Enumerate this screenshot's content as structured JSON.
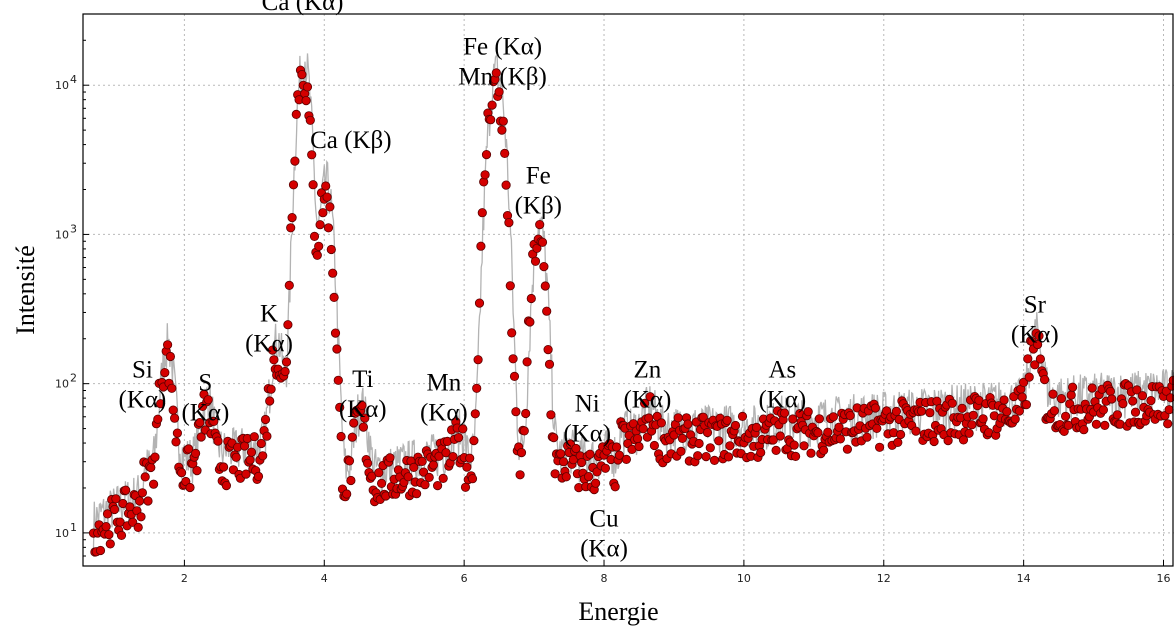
{
  "chart_data": {
    "type": "scatter",
    "xlabel": "Energie",
    "ylabel": "Intensité",
    "xlim": [
      0.55,
      16.15
    ],
    "ylim": [
      6,
      30000
    ],
    "yscale": "log",
    "grid": true,
    "x_ticks": [
      2,
      4,
      6,
      8,
      10,
      12,
      14,
      16
    ],
    "x_tick_labels": [
      "2",
      "4",
      "6",
      "8",
      "10",
      "12",
      "14",
      "16"
    ],
    "y_ticks": [
      10,
      100,
      1000,
      10000
    ],
    "y_tick_labels": [
      "10",
      "10",
      "10",
      "10"
    ],
    "y_tick_exponents": [
      "1",
      "2",
      "3",
      "4"
    ],
    "colors": {
      "marker": "#d40000",
      "marker_edge": "#5a0000",
      "reference_line": "#b3b3b3"
    },
    "peaks": [
      {
        "element": "Si",
        "line": "Kα",
        "x": 1.74,
        "y": 150
      },
      {
        "element": "S",
        "line": "Kα",
        "x": 2.31,
        "y": 65
      },
      {
        "element": "K",
        "line": "Kα",
        "x": 3.31,
        "y": 160
      },
      {
        "element": "Ca",
        "line": "Kα",
        "x": 3.69,
        "y": 12500
      },
      {
        "element": "Ca",
        "line": "Kβ",
        "x": 4.01,
        "y": 1850
      },
      {
        "element": "Ti",
        "line": "Kα",
        "x": 4.51,
        "y": 60
      },
      {
        "element": "Mn",
        "line": "Kα",
        "x": 5.9,
        "y": 40
      },
      {
        "element": "Fe",
        "line": "Kα",
        "x": 6.4,
        "y": 6000
      },
      {
        "element": "Mn",
        "line": "Kβ",
        "x": 6.49,
        "y": 6000
      },
      {
        "element": "Fe",
        "line": "Kβ",
        "x": 7.06,
        "y": 950
      },
      {
        "element": "Ni",
        "line": "Kα",
        "x": 7.48,
        "y": 30
      },
      {
        "element": "Cu",
        "line": "Kα",
        "x": 8.05,
        "y": 30
      },
      {
        "element": "Zn",
        "line": "Kα",
        "x": 8.64,
        "y": 60
      },
      {
        "element": "As",
        "line": "Kα",
        "x": 10.54,
        "y": 50
      },
      {
        "element": "Sr",
        "line": "Kα",
        "x": 14.16,
        "y": 180
      }
    ],
    "annotations": [
      {
        "lines": [
          "Ca (Kα)"
        ],
        "x": 3.69,
        "y": 32000
      },
      {
        "lines": [
          "Ca (Kβ)"
        ],
        "x": 4.38,
        "y": 3800
      },
      {
        "lines": [
          "Fe (Kα)",
          "Mn (Kβ)"
        ],
        "x": 6.55,
        "y": 16000
      },
      {
        "lines": [
          "Fe",
          "(Kβ)"
        ],
        "x": 7.06,
        "y": 2200
      },
      {
        "lines": [
          "K",
          "(Kα)"
        ],
        "x": 3.21,
        "y": 260
      },
      {
        "lines": [
          "Si",
          "(Kα)"
        ],
        "x": 1.4,
        "y": 110
      },
      {
        "lines": [
          "S",
          "(Kα)"
        ],
        "x": 2.3,
        "y": 90
      },
      {
        "lines": [
          "Ti",
          "(Kα)"
        ],
        "x": 4.55,
        "y": 95
      },
      {
        "lines": [
          "Mn",
          "(Kα)"
        ],
        "x": 5.71,
        "y": 90
      },
      {
        "lines": [
          "Ni",
          "(Kα)"
        ],
        "x": 7.76,
        "y": 65
      },
      {
        "lines": [
          "Zn",
          "(Kα)"
        ],
        "x": 8.62,
        "y": 110
      },
      {
        "lines": [
          "As",
          "(Kα)"
        ],
        "x": 10.55,
        "y": 110
      },
      {
        "lines": [
          "Cu",
          "(Kα)"
        ],
        "x": 8.0,
        "y": 11
      },
      {
        "lines": [
          "Sr",
          "(Kα)"
        ],
        "x": 14.16,
        "y": 300
      }
    ]
  }
}
